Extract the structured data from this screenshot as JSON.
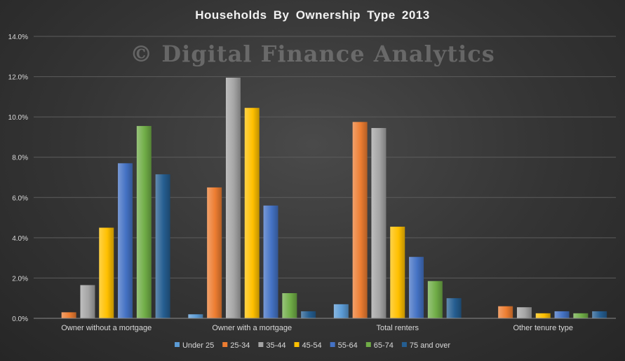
{
  "chart_data": {
    "type": "bar",
    "title": "Households  By  Ownership  Type  2013",
    "watermark": "© Digital Finance Analytics",
    "xlabel": "",
    "ylabel": "",
    "categories": [
      "Owner without a mortgage",
      "Owner with a mortgage",
      "Total renters",
      "Other tenure type"
    ],
    "ylim": [
      0,
      14
    ],
    "yticks": [
      0,
      2,
      4,
      6,
      8,
      10,
      12,
      14
    ],
    "ytick_labels": [
      "0.0%",
      "2.0%",
      "4.0%",
      "6.0%",
      "8.0%",
      "10.0%",
      "12.0%",
      "14.0%"
    ],
    "grid": true,
    "legend_position": "bottom",
    "series": [
      {
        "name": "Under 25",
        "color": "#5b9bd5",
        "values": [
          0.0,
          0.2,
          0.7,
          0.0
        ]
      },
      {
        "name": "25-34",
        "color": "#ed7d31",
        "values": [
          0.3,
          6.5,
          9.75,
          0.6
        ]
      },
      {
        "name": "35-44",
        "color": "#a5a5a5",
        "values": [
          1.65,
          11.95,
          9.45,
          0.55
        ]
      },
      {
        "name": "45-54",
        "color": "#ffc000",
        "values": [
          4.5,
          10.45,
          4.55,
          0.25
        ]
      },
      {
        "name": "55-64",
        "color": "#4472c4",
        "values": [
          7.7,
          5.6,
          3.05,
          0.35
        ]
      },
      {
        "name": "65-74",
        "color": "#70ad47",
        "values": [
          9.55,
          1.25,
          1.85,
          0.25
        ]
      },
      {
        "name": "75 and over",
        "color": "#255e91",
        "values": [
          7.15,
          0.35,
          1.0,
          0.35
        ]
      }
    ]
  }
}
